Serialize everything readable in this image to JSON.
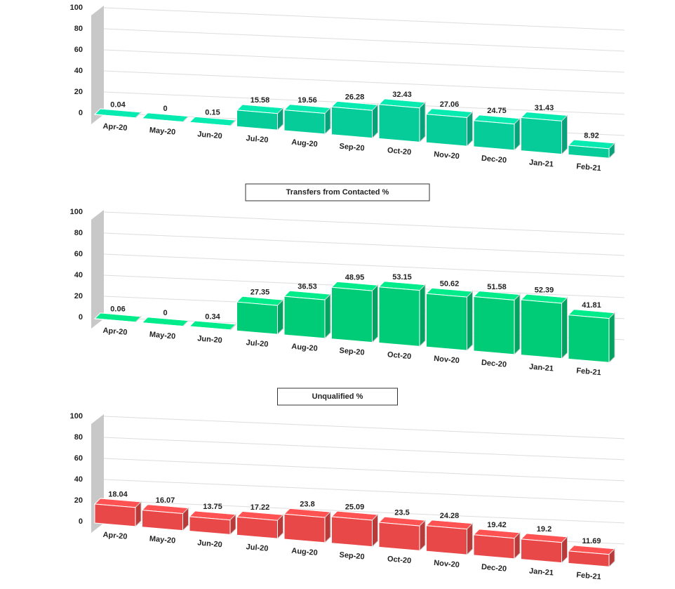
{
  "chart_data": [
    {
      "type": "bar",
      "categories": [
        "Apr-20",
        "May-20",
        "Jun-20",
        "Jul-20",
        "Aug-20",
        "Sep-20",
        "Oct-20",
        "Nov-20",
        "Dec-20",
        "Jan-21",
        "Feb-21"
      ],
      "values": [
        0.04,
        0,
        0.15,
        15.58,
        19.56,
        26.28,
        32.43,
        27.06,
        24.75,
        31.43,
        8.92
      ],
      "color": "#06cc99",
      "ylim": [
        0,
        100
      ],
      "yticks": [
        0,
        20,
        40,
        60,
        80,
        100
      ],
      "grid": true
    },
    {
      "type": "bar",
      "title": "Transfers from Contacted %",
      "categories": [
        "Apr-20",
        "May-20",
        "Jun-20",
        "Jul-20",
        "Aug-20",
        "Sep-20",
        "Oct-20",
        "Nov-20",
        "Dec-20",
        "Jan-21",
        "Feb-21"
      ],
      "values": [
        0.06,
        0,
        0.34,
        27.35,
        36.53,
        48.95,
        53.15,
        50.62,
        51.58,
        52.39,
        41.81
      ],
      "color": "#00cc77",
      "ylim": [
        0,
        100
      ],
      "yticks": [
        0,
        20,
        40,
        60,
        80,
        100
      ],
      "grid": true
    },
    {
      "type": "bar",
      "title": "Unqualified %",
      "categories": [
        "Apr-20",
        "May-20",
        "Jun-20",
        "Jul-20",
        "Aug-20",
        "Sep-20",
        "Oct-20",
        "Nov-20",
        "Dec-20",
        "Jan-21",
        "Feb-21"
      ],
      "values": [
        18.04,
        16.07,
        13.75,
        17.22,
        23.8,
        25.09,
        23.5,
        24.28,
        19.42,
        19.2,
        11.69
      ],
      "color": "#e84848",
      "ylim": [
        0,
        100
      ],
      "yticks": [
        0,
        20,
        40,
        60,
        80,
        100
      ],
      "grid": true
    }
  ]
}
